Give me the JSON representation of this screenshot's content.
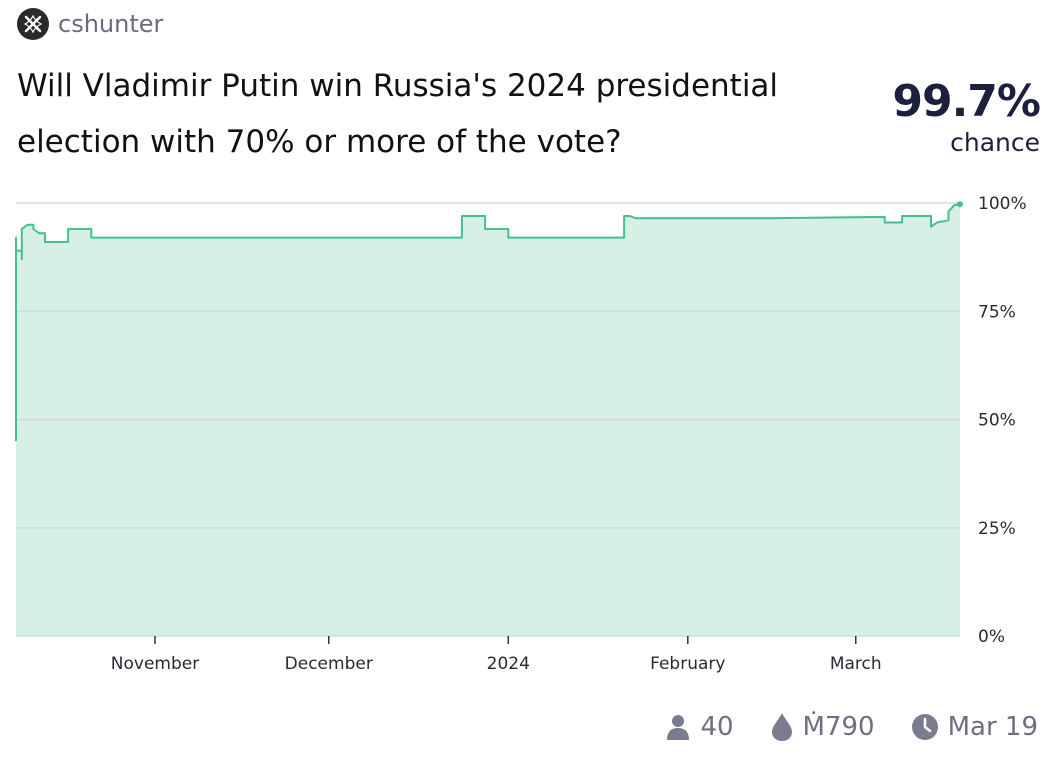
{
  "creator": {
    "name": "cshunter"
  },
  "question": "Will Vladimir Putin win Russia's 2024 presidential election with 70% or more of the vote?",
  "probability": {
    "value": "99.7%",
    "label": "chance"
  },
  "stats": {
    "traders": "40",
    "volume": "Ṁ790",
    "close_date": "Mar 19"
  },
  "colors": {
    "line": "#44c08a",
    "fill": "#d7f0e5",
    "grid": "#d5d8dc"
  },
  "icons": [
    "person-icon",
    "droplet-icon",
    "clock-icon"
  ],
  "chart_data": {
    "type": "area",
    "x_axis": "time",
    "x_range": [
      "2023-10-08",
      "2024-03-19"
    ],
    "ylim": [
      0,
      100
    ],
    "y_ticks": [
      {
        "value": 100,
        "label": "100%"
      },
      {
        "value": 75,
        "label": "75%"
      },
      {
        "value": 50,
        "label": "50%"
      },
      {
        "value": 25,
        "label": "25%"
      },
      {
        "value": 0,
        "label": "0%"
      }
    ],
    "x_ticks": [
      {
        "date": "2023-11-01",
        "label": "November"
      },
      {
        "date": "2023-12-01",
        "label": "December"
      },
      {
        "date": "2024-01-01",
        "label": "2024"
      },
      {
        "date": "2024-02-01",
        "label": "February"
      },
      {
        "date": "2024-03-01",
        "label": "March"
      }
    ],
    "grid": true,
    "points": [
      [
        "2023-10-08",
        45
      ],
      [
        "2023-10-08",
        92
      ],
      [
        "2023-10-08",
        89
      ],
      [
        "2023-10-09",
        89
      ],
      [
        "2023-10-09",
        87
      ],
      [
        "2023-10-09",
        94
      ],
      [
        "2023-10-10",
        95
      ],
      [
        "2023-10-11",
        95
      ],
      [
        "2023-10-11",
        94
      ],
      [
        "2023-10-12",
        93
      ],
      [
        "2023-10-13",
        93
      ],
      [
        "2023-10-13",
        91
      ],
      [
        "2023-10-17",
        91
      ],
      [
        "2023-10-17",
        94
      ],
      [
        "2023-10-21",
        94
      ],
      [
        "2023-10-21",
        92
      ],
      [
        "2023-12-24",
        92
      ],
      [
        "2023-12-24",
        97
      ],
      [
        "2023-12-28",
        97
      ],
      [
        "2023-12-28",
        94
      ],
      [
        "2024-01-01",
        94
      ],
      [
        "2024-01-01",
        92
      ],
      [
        "2024-01-21",
        92
      ],
      [
        "2024-01-21",
        97
      ],
      [
        "2024-01-22",
        97
      ],
      [
        "2024-01-23",
        96.5
      ],
      [
        "2024-02-15",
        96.5
      ],
      [
        "2024-03-06",
        96.8
      ],
      [
        "2024-03-06",
        95.5
      ],
      [
        "2024-03-09",
        95.5
      ],
      [
        "2024-03-09",
        97
      ],
      [
        "2024-03-14",
        97
      ],
      [
        "2024-03-14",
        94.5
      ],
      [
        "2024-03-15",
        95.5
      ],
      [
        "2024-03-17",
        96
      ],
      [
        "2024-03-17",
        98
      ],
      [
        "2024-03-18",
        99.5
      ],
      [
        "2024-03-19",
        99.7
      ]
    ]
  }
}
